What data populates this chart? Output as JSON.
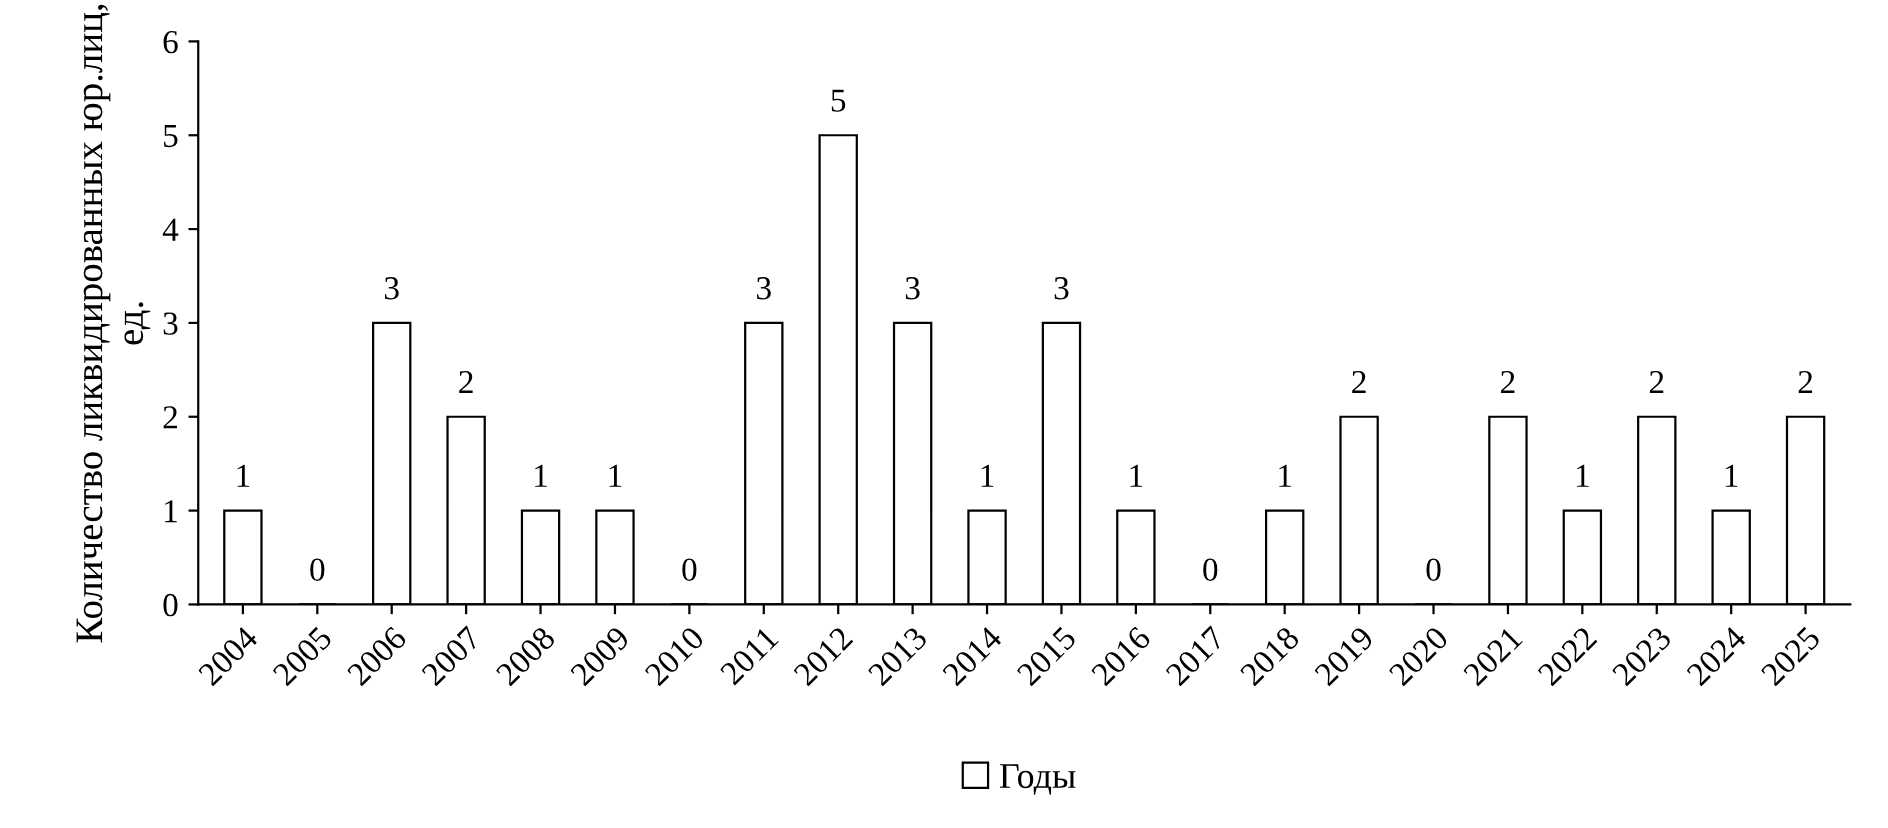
{
  "chart_data": {
    "type": "bar",
    "ylabel": "Количество ликвидированных юр.лиц, ед.",
    "categories": [
      "2004",
      "2005",
      "2006",
      "2007",
      "2008",
      "2009",
      "2010",
      "2011",
      "2012",
      "2013",
      "2014",
      "2015",
      "2016",
      "2017",
      "2018",
      "2019",
      "2020",
      "2021",
      "2022",
      "2023",
      "2024",
      "2025"
    ],
    "series": [
      {
        "name": "Годы",
        "color": "#ffffff",
        "values": [
          1,
          0,
          3,
          2,
          1,
          1,
          0,
          3,
          5,
          3,
          1,
          3,
          1,
          0,
          1,
          2,
          0,
          2,
          1,
          2,
          1,
          2
        ]
      }
    ],
    "ylim": [
      0,
      6
    ],
    "yticks": [
      0,
      1,
      2,
      3,
      4,
      5,
      6
    ],
    "grid": false,
    "legend": "bottom",
    "data_labels": true
  }
}
